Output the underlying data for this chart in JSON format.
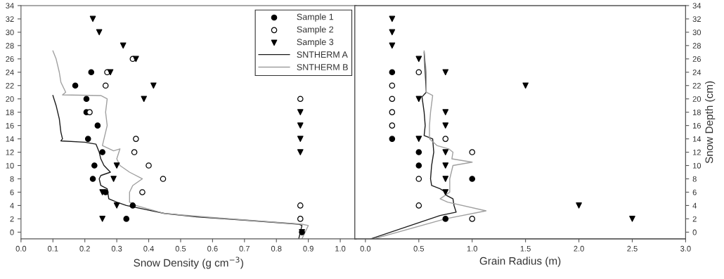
{
  "chart_data": [
    {
      "type": "scatter",
      "xlabel": "Snow Density (g cm$^{−3}$)",
      "xlim": [
        0,
        1.05
      ],
      "xticks": [
        {
          "value": 0,
          "label": "0.0"
        },
        0.1,
        0.2,
        0.3,
        0.4,
        0.5,
        0.6,
        0.7,
        0.8,
        0.9,
        {
          "value": 1,
          "label": "1.0"
        }
      ],
      "ylim": [
        -1,
        34
      ],
      "yticks": [
        0,
        2,
        4,
        6,
        8,
        10,
        12,
        14,
        16,
        18,
        20,
        22,
        24,
        26,
        28,
        30,
        32,
        34
      ],
      "grid": false,
      "legend": "top right",
      "series": [
        {
          "name": "Sample 1",
          "marker": "circle",
          "color": "#000000",
          "x": [
            0.22,
            0.17,
            0.205,
            0.205,
            0.24,
            0.21,
            0.255,
            0.23,
            0.225,
            0.265,
            0.35,
            0.33,
            0.88
          ],
          "values": [
            24,
            22,
            20,
            18,
            16,
            14,
            12,
            10,
            8,
            6,
            4,
            2,
            0
          ]
        },
        {
          "name": "Sample 2",
          "marker": "circle",
          "color": "#ffffff",
          "x": [
            0.35,
            0.27,
            0.265,
            0.875,
            0.215,
            0.36,
            0.355,
            0.4,
            0.445,
            0.38,
            0.875,
            0.875
          ],
          "values": [
            26,
            24,
            22,
            20,
            18,
            14,
            12,
            10,
            8,
            6,
            4,
            2
          ]
        },
        {
          "name": "Sample 3",
          "marker": "triangle",
          "color": "#000000",
          "x": [
            0.225,
            0.245,
            0.32,
            0.36,
            0.28,
            0.415,
            0.385,
            0.875,
            0.875,
            0.875,
            0.875,
            0.3,
            0.29,
            0.255,
            0.3,
            0.255,
            0.88
          ],
          "values": [
            32,
            30,
            28,
            26,
            24,
            22,
            20,
            18,
            16,
            14,
            12,
            10,
            8,
            6,
            4,
            2,
            0
          ]
        },
        {
          "name": "SNTHERM A",
          "type": "line",
          "color": "#1a1a1a",
          "x": [
            0.1,
            0.11,
            0.12,
            0.125,
            0.13,
            0.125,
            0.2,
            0.235,
            0.245,
            0.25,
            0.26,
            0.27,
            0.28,
            0.25,
            0.245,
            0.25,
            0.27,
            0.275,
            0.3,
            0.33,
            0.38,
            0.45,
            0.55,
            0.7,
            0.87,
            0.88,
            0.87
          ],
          "values": [
            20.5,
            19,
            17,
            15,
            14,
            13.7,
            13.5,
            13.2,
            12,
            11,
            10,
            9.5,
            9,
            8.5,
            8,
            7,
            6.5,
            5,
            4.5,
            4,
            3.5,
            2.8,
            2.3,
            1.8,
            1.2,
            1,
            -1
          ]
        },
        {
          "name": "SNTHERM B",
          "type": "line",
          "color": "#a0a0a0",
          "x": [
            0.1,
            0.11,
            0.12,
            0.125,
            0.14,
            0.13,
            0.25,
            0.27,
            0.265,
            0.27,
            0.26,
            0.255,
            0.29,
            0.31,
            0.3,
            0.31,
            0.34,
            0.38,
            0.35,
            0.34,
            0.34,
            0.36,
            0.45,
            0.6,
            0.88,
            0.9,
            0.88
          ],
          "values": [
            27.2,
            26,
            24,
            22.5,
            21,
            20.6,
            20.5,
            20,
            18,
            16,
            14,
            13,
            12.2,
            12.5,
            11,
            10,
            9,
            8,
            7,
            6,
            4.5,
            4,
            2.8,
            2.2,
            1.2,
            1,
            -1
          ]
        }
      ]
    },
    {
      "type": "scatter",
      "xlabel": "Grain Radius (m)",
      "xlim": [
        -0.1,
        3.0
      ],
      "xticks": [
        {
          "value": 0,
          "label": "0.0"
        },
        0.5,
        {
          "value": 1,
          "label": "1.0"
        },
        1.5,
        {
          "value": 2,
          "label": "2.0"
        },
        2.5,
        {
          "value": 3,
          "label": "3.0"
        }
      ],
      "y2label": "Snow Depth (cm)",
      "y2lim": [
        -1,
        34
      ],
      "y2ticks": [
        0,
        2,
        4,
        6,
        8,
        10,
        12,
        14,
        16,
        18,
        20,
        22,
        24,
        26,
        28,
        30,
        32,
        34
      ],
      "grid": false,
      "series": [
        {
          "axis": "y2",
          "marker": "circle",
          "color": "#000000",
          "x": [
            0.25,
            0.25,
            0.5,
            0.5,
            1.0,
            0.75
          ],
          "values": [
            24,
            14,
            12,
            10,
            8,
            2
          ]
        },
        {
          "axis": "y2",
          "marker": "circle",
          "color": "#ffffff",
          "x": [
            0.5,
            0.25,
            0.25,
            0.25,
            0.25,
            0.75,
            1.0,
            0.5,
            0.5,
            1.0
          ],
          "values": [
            24,
            22,
            20,
            18,
            16,
            14,
            12,
            8,
            4,
            2
          ]
        },
        {
          "axis": "y2",
          "marker": "triangle",
          "color": "#000000",
          "x": [
            0.25,
            0.25,
            0.25,
            0.5,
            0.75,
            1.5,
            0.5,
            0.75,
            0.75,
            0.5,
            0.75,
            0.75,
            0.75,
            0.75,
            2.0,
            2.5
          ],
          "values": [
            32,
            30,
            28,
            26,
            24,
            22,
            20,
            18,
            16,
            14,
            12,
            10,
            8,
            6,
            4,
            2
          ]
        },
        {
          "type": "line",
          "axis": "y2",
          "color": "#1a1a1a",
          "x": [
            0.55,
            0.56,
            0.57,
            0.53,
            0.55,
            0.56,
            0.55,
            0.63,
            0.64,
            0.62,
            0.61,
            0.62,
            0.7,
            0.75,
            0.76,
            0.82,
            0.83,
            0.85,
            0.7,
            0.05
          ],
          "values": [
            27,
            24,
            21,
            20.3,
            18,
            16,
            14.5,
            14,
            12,
            10,
            8,
            7,
            6.5,
            6,
            5.5,
            5,
            4,
            3,
            2.5,
            -1
          ]
        },
        {
          "type": "line",
          "axis": "y2",
          "color": "#a0a0a0",
          "x": [
            0.55,
            0.57,
            0.57,
            0.63,
            0.61,
            0.6,
            0.6,
            0.67,
            0.78,
            0.82,
            0.81,
            1.0,
            0.82,
            0.79,
            0.79,
            0.7,
            0.77,
            1.13,
            0.75,
            0.08
          ],
          "values": [
            27.2,
            24,
            21,
            20.5,
            18,
            16,
            14,
            13,
            12.5,
            12,
            11,
            10.5,
            10,
            8,
            6,
            5,
            4.5,
            3.2,
            2,
            -1
          ]
        }
      ]
    }
  ]
}
